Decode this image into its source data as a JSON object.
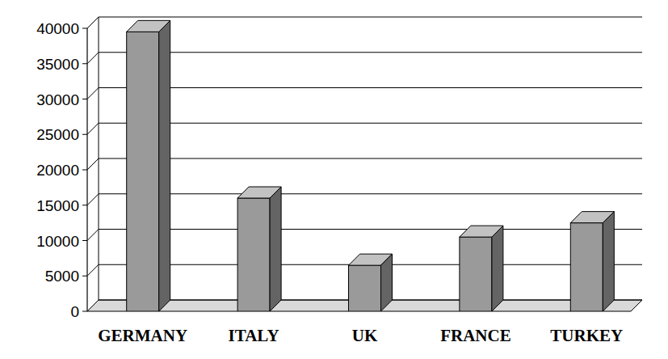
{
  "chart_data": {
    "type": "bar",
    "categories": [
      "GERMANY",
      "ITALY",
      "UK",
      "FRANCE",
      "TURKEY"
    ],
    "values": [
      39500,
      16000,
      6500,
      10500,
      12500
    ],
    "color": "#9a9a9a",
    "ylim": [
      0,
      40000
    ],
    "yticks": [
      0,
      5000,
      10000,
      15000,
      20000,
      25000,
      30000,
      35000,
      40000
    ],
    "grid": true
  }
}
